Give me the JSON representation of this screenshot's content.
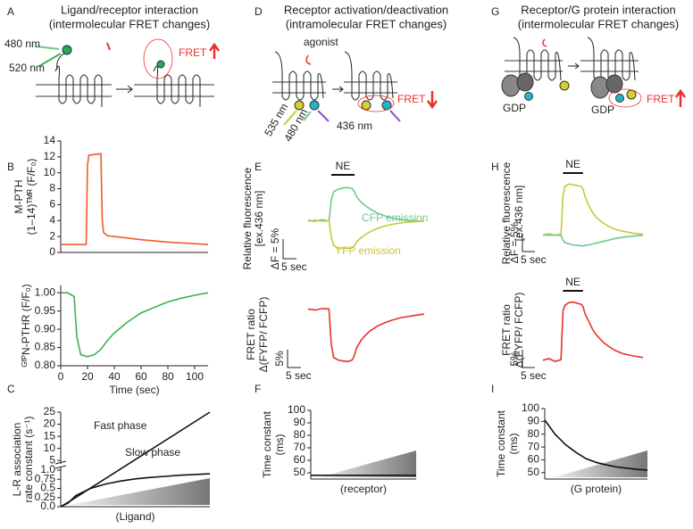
{
  "panel_labels": [
    "A",
    "B",
    "C",
    "D",
    "E",
    "F",
    "G",
    "H",
    "I"
  ],
  "diagrams": {
    "A": {
      "title": [
        "Ligand/receptor interaction",
        "(intermolecular FRET changes)"
      ],
      "labels": [
        "480 nm",
        "520 nm",
        "FRET"
      ]
    },
    "D": {
      "title": [
        "Receptor activation/deactivation",
        "(intramolecular FRET changes)"
      ],
      "labels": [
        "agonist",
        "535 nm",
        "480 nm",
        "436 nm",
        "FRET"
      ]
    },
    "G": {
      "title": [
        "Receptor/G protein interaction",
        "(intermolecular FRET changes)"
      ],
      "labels": [
        "GDP",
        "GDP",
        "FRET"
      ]
    }
  },
  "chart_data": [
    {
      "type": "line",
      "ylabel": [
        "M-PTH",
        "(1–14)ᵀᴹᴿ (F/F₀)"
      ],
      "xlim": [
        0,
        110
      ],
      "ylim": [
        0,
        14
      ],
      "yticks": [
        0,
        2,
        4,
        6,
        8,
        10,
        12,
        14
      ],
      "color": "#f05a28",
      "x": [
        0,
        5,
        10,
        15,
        19,
        20,
        21,
        25,
        30,
        31,
        32,
        35,
        40,
        60,
        80,
        110
      ],
      "values": [
        1,
        1,
        1,
        1,
        1,
        11,
        12.2,
        12.3,
        12.4,
        4,
        2.5,
        2.1,
        2,
        1.6,
        1.3,
        1
      ]
    },
    {
      "type": "line",
      "ylabel": [
        "ᴳᶠᴾN-PTHR (F/F₀)"
      ],
      "xlabel": "Time (sec)",
      "xlim": [
        0,
        110
      ],
      "ylim": [
        0.8,
        1.02
      ],
      "yticks": [
        {
          "value": 0.8,
          "label": "0.80"
        },
        0.85,
        {
          "value": 0.9,
          "label": "0.90"
        },
        0.95,
        {
          "value": 1,
          "label": "1.00"
        }
      ],
      "xticks": [
        0,
        20,
        40,
        60,
        80,
        100
      ],
      "color": "#3cb44b",
      "x": [
        0,
        5,
        10,
        12,
        15,
        20,
        25,
        30,
        35,
        40,
        50,
        60,
        70,
        80,
        90,
        100,
        110
      ],
      "values": [
        1,
        1,
        0.99,
        0.88,
        0.83,
        0.825,
        0.83,
        0.845,
        0.87,
        0.89,
        0.92,
        0.945,
        0.96,
        0.975,
        0.985,
        0.993,
        1
      ]
    },
    {
      "type": "line",
      "ylabel": [
        "L-R association",
        "rate constant (s⁻¹)"
      ],
      "xlabel": "(Ligand)",
      "xlim": [
        0,
        1
      ],
      "ylim": [
        0,
        25
      ],
      "ybreak": 1,
      "yticks": [
        {
          "value": 0,
          "label": "0.0"
        },
        0.25,
        0.5,
        0.75,
        {
          "value": 1,
          "label": "1.0"
        },
        5,
        10,
        15,
        20,
        25
      ],
      "series": [
        {
          "name": "Fast phase",
          "color": "#111111",
          "x": [
            0,
            0.05,
            1
          ],
          "values": [
            0,
            0.12,
            25
          ]
        },
        {
          "name": "Slow phase",
          "color": "#111111",
          "x": [
            0,
            0.05,
            0.1,
            0.2,
            0.3,
            0.4,
            0.5,
            0.6,
            0.7,
            0.8,
            0.9,
            1
          ],
          "values": [
            0,
            0.1,
            0.3,
            0.5,
            0.62,
            0.7,
            0.76,
            0.8,
            0.83,
            0.86,
            0.88,
            0.9
          ]
        }
      ]
    },
    {
      "type": "line",
      "ylabel": [
        "Relative fluorescence",
        "[ex.436 nm]"
      ],
      "scale_bars": {
        "y": "ΔF = 5%",
        "x": "5 sec"
      },
      "stimulus": {
        "label": "NE",
        "start": 10,
        "end": 20
      },
      "xlim": [
        0,
        50
      ],
      "ylim": [
        -7,
        8
      ],
      "series": [
        {
          "name": "CFP emission",
          "color": "#6cc98e",
          "x": [
            0,
            3,
            6,
            9,
            10,
            11,
            13,
            15,
            17,
            19,
            20,
            21,
            23,
            25,
            27,
            30,
            33,
            36,
            40,
            45,
            50
          ],
          "values": [
            0.2,
            0,
            0.3,
            0,
            4,
            5.5,
            6,
            6.2,
            6.3,
            6.1,
            5.5,
            4.5,
            3.5,
            2.8,
            2.2,
            1.5,
            1,
            0.6,
            0.3,
            0.1,
            0
          ]
        },
        {
          "name": "YFP emission",
          "color": "#c8c83a",
          "x": [
            0,
            3,
            6,
            9,
            10,
            11,
            13,
            15,
            17,
            19,
            20,
            21,
            23,
            25,
            27,
            30,
            33,
            36,
            40,
            45,
            50
          ],
          "values": [
            0,
            0.2,
            0,
            0.1,
            -3,
            -4.5,
            -5,
            -5,
            -5.1,
            -5,
            -4.5,
            -3.8,
            -3,
            -2.4,
            -1.9,
            -1.3,
            -0.9,
            -0.6,
            -0.3,
            -0.1,
            0
          ]
        }
      ]
    },
    {
      "type": "line",
      "ylabel": [
        "FRET ratio",
        "Δ(FYFP/ FCFP)"
      ],
      "scale_bars": {
        "y": "5%",
        "x": "5 sec"
      },
      "xlim": [
        0,
        50
      ],
      "ylim": [
        -12,
        2
      ],
      "color": "#e8312a",
      "x": [
        0,
        3,
        6,
        9,
        10,
        11,
        13,
        15,
        17,
        19,
        20,
        21,
        23,
        25,
        27,
        30,
        33,
        36,
        40,
        45,
        50
      ],
      "values": [
        0,
        -0.2,
        0.1,
        0,
        -7,
        -9.5,
        -10,
        -10.2,
        -10.3,
        -10,
        -9,
        -7.5,
        -6,
        -5,
        -4.2,
        -3.3,
        -2.7,
        -2.2,
        -1.7,
        -1.3,
        -1
      ]
    },
    {
      "type": "line",
      "ylabel": [
        "Time constant",
        "(ms)"
      ],
      "xlabel": "(receptor)",
      "xlim": [
        0,
        1
      ],
      "ylim": [
        45,
        100
      ],
      "yticks": [
        50,
        60,
        70,
        80,
        90,
        100
      ],
      "color": "#111111",
      "x": [
        0,
        1
      ],
      "values": [
        48,
        48
      ]
    },
    {
      "type": "line",
      "ylabel": [
        "Relative fluorescence",
        "[ex.436 nm]"
      ],
      "scale_bars": {
        "y": "ΔF = 5%",
        "x": "5 sec"
      },
      "stimulus": {
        "label": "NE",
        "start": 10,
        "end": 20
      },
      "xlim": [
        0,
        50
      ],
      "ylim": [
        -3,
        12
      ],
      "series": [
        {
          "color": "#c8c83a",
          "x": [
            0,
            3,
            6,
            9,
            10,
            11,
            13,
            15,
            17,
            19,
            20,
            21,
            23,
            25,
            27,
            30,
            33,
            36,
            40,
            45,
            50
          ],
          "values": [
            0,
            0.3,
            0,
            0.2,
            8,
            10,
            10.5,
            10.3,
            10.2,
            10,
            9.5,
            8,
            6,
            4.5,
            3.5,
            2.5,
            1.8,
            1.2,
            0.8,
            0.4,
            0.2
          ]
        },
        {
          "color": "#6cc98e",
          "x": [
            0,
            3,
            6,
            9,
            10,
            11,
            13,
            15,
            17,
            19,
            20,
            21,
            23,
            25,
            27,
            30,
            33,
            36,
            40,
            45,
            50
          ],
          "values": [
            0,
            0,
            0,
            0,
            -1,
            -1.5,
            -1.8,
            -2,
            -2.1,
            -2.2,
            -2.2,
            -2.1,
            -2,
            -1.8,
            -1.6,
            -1.3,
            -1,
            -0.7,
            -0.4,
            -0.2,
            0
          ]
        }
      ]
    },
    {
      "type": "line",
      "ylabel": [
        "FRET ratio",
        "Δ(FYFP/ FCFP)"
      ],
      "scale_bars": {
        "y": "5%",
        "x": "5 sec"
      },
      "stimulus": {
        "label": "NE",
        "start": 10,
        "end": 20
      },
      "xlim": [
        0,
        50
      ],
      "ylim": [
        -1,
        12
      ],
      "color": "#e8312a",
      "x": [
        0,
        3,
        6,
        9,
        10,
        11,
        13,
        15,
        17,
        19,
        20,
        21,
        23,
        25,
        27,
        30,
        33,
        36,
        40,
        45,
        50
      ],
      "values": [
        0,
        0.3,
        -0.2,
        0.1,
        9,
        10,
        10.5,
        10.6,
        10.4,
        10.2,
        9.8,
        8.5,
        7,
        5.5,
        4.5,
        3.3,
        2.5,
        1.8,
        1.2,
        0.8,
        0.5
      ]
    },
    {
      "type": "line",
      "ylabel": [
        "Time constant",
        "(ms)"
      ],
      "xlabel": "(G protein)",
      "xlim": [
        0,
        1
      ],
      "ylim": [
        45,
        100
      ],
      "yticks": [
        50,
        60,
        70,
        80,
        90,
        100
      ],
      "color": "#111111",
      "x": [
        0,
        0.1,
        0.2,
        0.3,
        0.4,
        0.5,
        0.6,
        0.7,
        0.8,
        0.9,
        1
      ],
      "values": [
        91,
        80,
        72,
        66,
        61,
        58,
        56,
        54.5,
        53.5,
        52.5,
        52
      ]
    }
  ]
}
